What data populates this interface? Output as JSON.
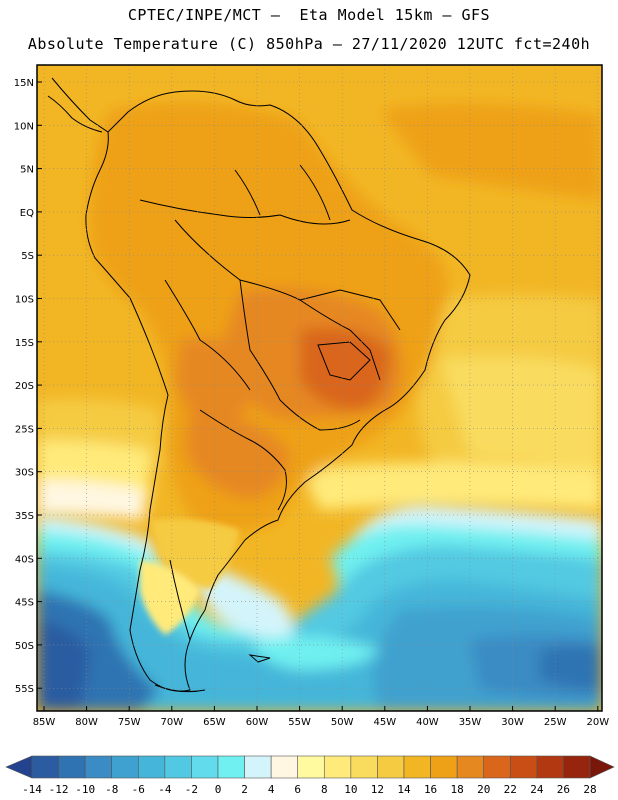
{
  "header": {
    "line1": "CPTEC/INPE/MCT –  Eta Model 15km – GFS",
    "line2": "Absolute Temperature (C) 850hPa – 27/11/2020 12UTC fct=240h"
  },
  "axes": {
    "lat_labels": [
      "15N",
      "10N",
      "5N",
      "EQ",
      "5S",
      "10S",
      "15S",
      "20S",
      "25S",
      "30S",
      "35S",
      "40S",
      "45S",
      "50S",
      "55S"
    ],
    "lon_labels": [
      "85W",
      "80W",
      "75W",
      "70W",
      "65W",
      "60W",
      "55W",
      "50W",
      "45W",
      "40W",
      "35W",
      "30W",
      "25W",
      "20W"
    ],
    "grid": "dotted"
  },
  "legend": {
    "ticks": [
      "-14",
      "-12",
      "-10",
      "-8",
      "-6",
      "-4",
      "-2",
      "0",
      "2",
      "4",
      "6",
      "8",
      "10",
      "12",
      "14",
      "16",
      "18",
      "20",
      "22",
      "24",
      "26",
      "28"
    ],
    "colors": [
      "#23438f",
      "#2b5ba1",
      "#2f73b2",
      "#3b8bc4",
      "#3fa1cf",
      "#45b6d9",
      "#52c9e2",
      "#62dcec",
      "#70f0f0",
      "#d4f4fb",
      "#fff7e2",
      "#fffaa0",
      "#ffea7a",
      "#f9dc5e",
      "#f5cb42",
      "#f2b625",
      "#eea117",
      "#e68820",
      "#d9661a",
      "#c94e15",
      "#b13811",
      "#97250d",
      "#7a170b"
    ]
  }
}
